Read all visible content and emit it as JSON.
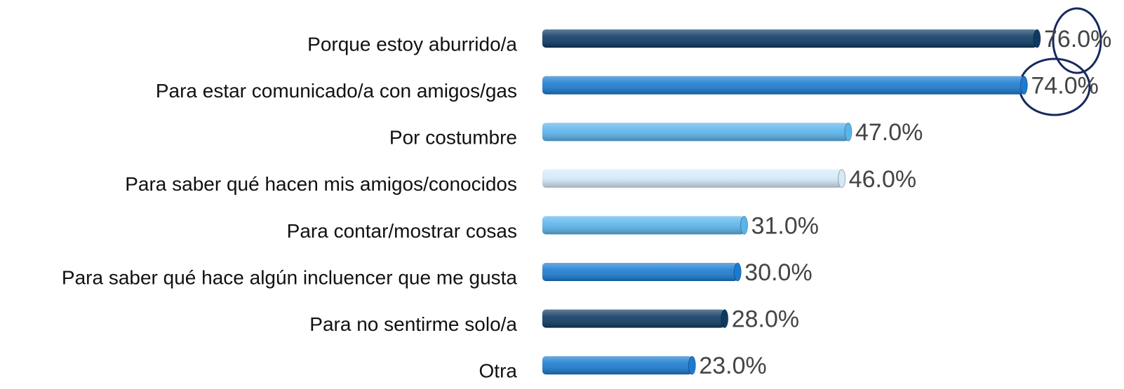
{
  "chart_data": {
    "type": "bar",
    "orientation": "horizontal",
    "categories": [
      "Porque estoy aburrido/a",
      "Para estar comunicado/a con amigos/gas",
      "Por costumbre",
      "Para saber qué hacen mis amigos/conocidos",
      "Para contar/mostrar cosas",
      "Para saber qué hace algún incluencer que me gusta",
      "Para no sentirme solo/a",
      "Otra"
    ],
    "values": [
      76,
      74,
      47,
      46,
      31,
      30,
      28,
      23
    ],
    "value_labels": [
      "76.0%",
      "74.0%",
      "47.0%",
      "46.0%",
      "31.0%",
      "30.0%",
      "28.0%",
      "23.0%"
    ],
    "colors": [
      "#0d3a63",
      "#1a7bd0",
      "#5ab4ec",
      "#d4eaf9",
      "#5ab4ec",
      "#1a7bd0",
      "#0d3a63",
      "#1a7bd0"
    ]
  }
}
